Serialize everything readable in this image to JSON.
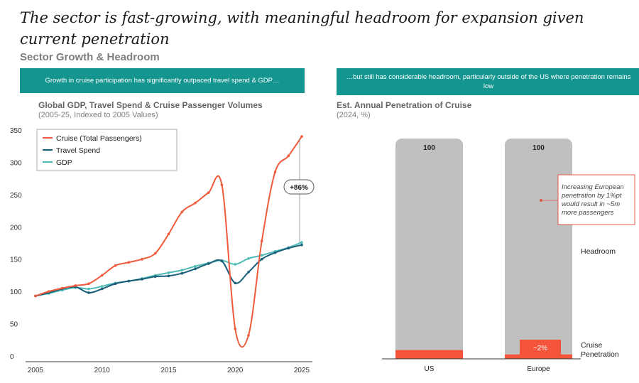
{
  "headline": "The sector is fast-growing, with meaningful headroom for expansion given current penetration",
  "section_title": "Sector Growth & Headroom",
  "banners": {
    "left": "Growth in cruise participation has significantly outpaced travel spend & GDP…",
    "right": "…but still has considerable headroom, particularly outside of the US where penetration remains low"
  },
  "colors": {
    "cruise": "#f05a3c",
    "travel": "#1a5f7a",
    "gdp": "#4fbab5",
    "teal_banner": "#15958f",
    "bar_gray": "#c0c0c0",
    "bar_red": "#f4553a"
  },
  "chart_data": [
    {
      "type": "line",
      "title": "Global GDP, Travel Spend & Cruise Passenger Volumes",
      "subtitle": "(2005-25, Indexed to 2005 Values)",
      "xlim": [
        2005,
        2025
      ],
      "ylim": [
        0,
        350
      ],
      "x_ticks": [
        2005,
        2010,
        2015,
        2020,
        2025
      ],
      "y_ticks": [
        0,
        50,
        100,
        150,
        200,
        250,
        300,
        350
      ],
      "legend_position": "top-left",
      "x": [
        2005,
        2006,
        2007,
        2008,
        2009,
        2010,
        2011,
        2012,
        2013,
        2014,
        2015,
        2016,
        2017,
        2018,
        2019,
        2020,
        2021,
        2022,
        2023,
        2024,
        2025
      ],
      "series": [
        {
          "name": "Cruise (Total Passengers)",
          "color_key": "cruise",
          "values": [
            93,
            100,
            105,
            109,
            112,
            125,
            140,
            145,
            150,
            159,
            189,
            223,
            237,
            253,
            265,
            42,
            32,
            178,
            285,
            310,
            340
          ]
        },
        {
          "name": "Travel Spend",
          "color_key": "travel",
          "values": [
            93,
            98,
            104,
            107,
            98,
            104,
            112,
            116,
            119,
            123,
            124,
            128,
            135,
            143,
            147,
            113,
            130,
            150,
            160,
            167,
            172
          ]
        },
        {
          "name": "GDP",
          "color_key": "gdp",
          "values": [
            93,
            97,
            102,
            106,
            104,
            108,
            113,
            116,
            120,
            125,
            129,
            133,
            139,
            144,
            148,
            142,
            151,
            156,
            162,
            168,
            176
          ]
        }
      ],
      "annotations": [
        {
          "text": "+86%"
        }
      ]
    },
    {
      "type": "bar",
      "title": "Est. Annual Penetration of Cruise",
      "subtitle": "(2024, %)",
      "categories": [
        "US",
        "Europe"
      ],
      "series": [
        {
          "name": "Cruise Penetration",
          "color_key": "bar_red",
          "values": [
            4,
            2
          ]
        },
        {
          "name": "Headroom",
          "color_key": "bar_gray",
          "values": [
            96,
            98
          ]
        }
      ],
      "totals": [
        "100",
        "100"
      ],
      "labels": {
        "europe_penetration": "~2%"
      },
      "callout": "Increasing European penetration by 1%pt would result in ~5m more passengers"
    }
  ]
}
